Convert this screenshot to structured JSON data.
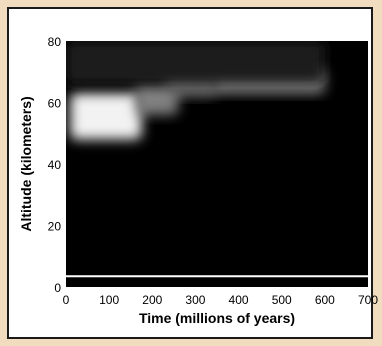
{
  "chart_data": {
    "type": "heatmap",
    "title": "",
    "xlabel": "Time (millions of years)",
    "ylabel": "Altitude (kilometers)",
    "xlim": [
      0,
      700
    ],
    "ylim": [
      0,
      80
    ],
    "x_ticks": [
      0,
      100,
      200,
      300,
      400,
      500,
      600,
      700
    ],
    "y_ticks": [
      0,
      20,
      40,
      60,
      80
    ],
    "colormap": [
      "#000000",
      "#ffffff"
    ],
    "background_color": "#000000",
    "baseline_color": "#ffffff",
    "grid": false,
    "regions": [
      {
        "x": [
          10,
          175
        ],
        "y": [
          48,
          63
        ],
        "intensity": 0.95
      },
      {
        "x": [
          160,
          260
        ],
        "y": [
          56,
          66
        ],
        "intensity": 0.5
      },
      {
        "x": [
          230,
          350
        ],
        "y": [
          62,
          70
        ],
        "intensity": 0.45
      },
      {
        "x": [
          340,
          600
        ],
        "y": [
          63,
          71
        ],
        "intensity": 0.55
      },
      {
        "x": [
          0,
          600
        ],
        "y": [
          66,
          80
        ],
        "intensity": 0.12
      }
    ]
  }
}
